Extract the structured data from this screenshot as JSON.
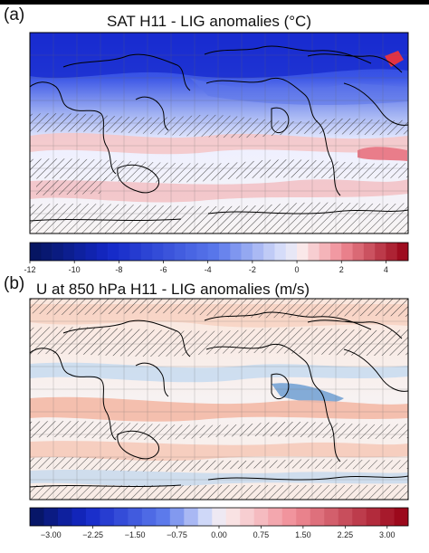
{
  "panels": [
    {
      "label": "(a)",
      "title": "SAT H11 - LIG  anomalies (°C)",
      "colorbar": {
        "vmin": -12,
        "vmax": 5,
        "nbins": 34,
        "ticks": [
          "-12",
          "-10",
          "-8",
          "-6",
          "-4",
          "-2",
          "0",
          "2",
          "4"
        ],
        "tick_values": [
          -12,
          -10,
          -8,
          -6,
          -4,
          -2,
          0,
          2,
          4
        ]
      }
    },
    {
      "label": "(b)",
      "title": "U at 850 hPa H11 - LIG  anomalies (m/s)",
      "colorbar": {
        "vmin": -3.375,
        "vmax": 3.375,
        "nbins": 27,
        "ticks": [
          "−3.00",
          "−2.25",
          "−1.50",
          "−0.75",
          "0.00",
          "0.75",
          "1.50",
          "2.25",
          "3.00"
        ],
        "tick_values": [
          -3,
          -2.25,
          -1.5,
          -0.75,
          0,
          0.75,
          1.5,
          2.25,
          3
        ]
      }
    }
  ],
  "colors": {
    "sat_cold": "#1a2fd6",
    "sat_warm": "#e4677a",
    "u_pos": "#f2b7a0",
    "u_neg": "#8fb8e0"
  }
}
